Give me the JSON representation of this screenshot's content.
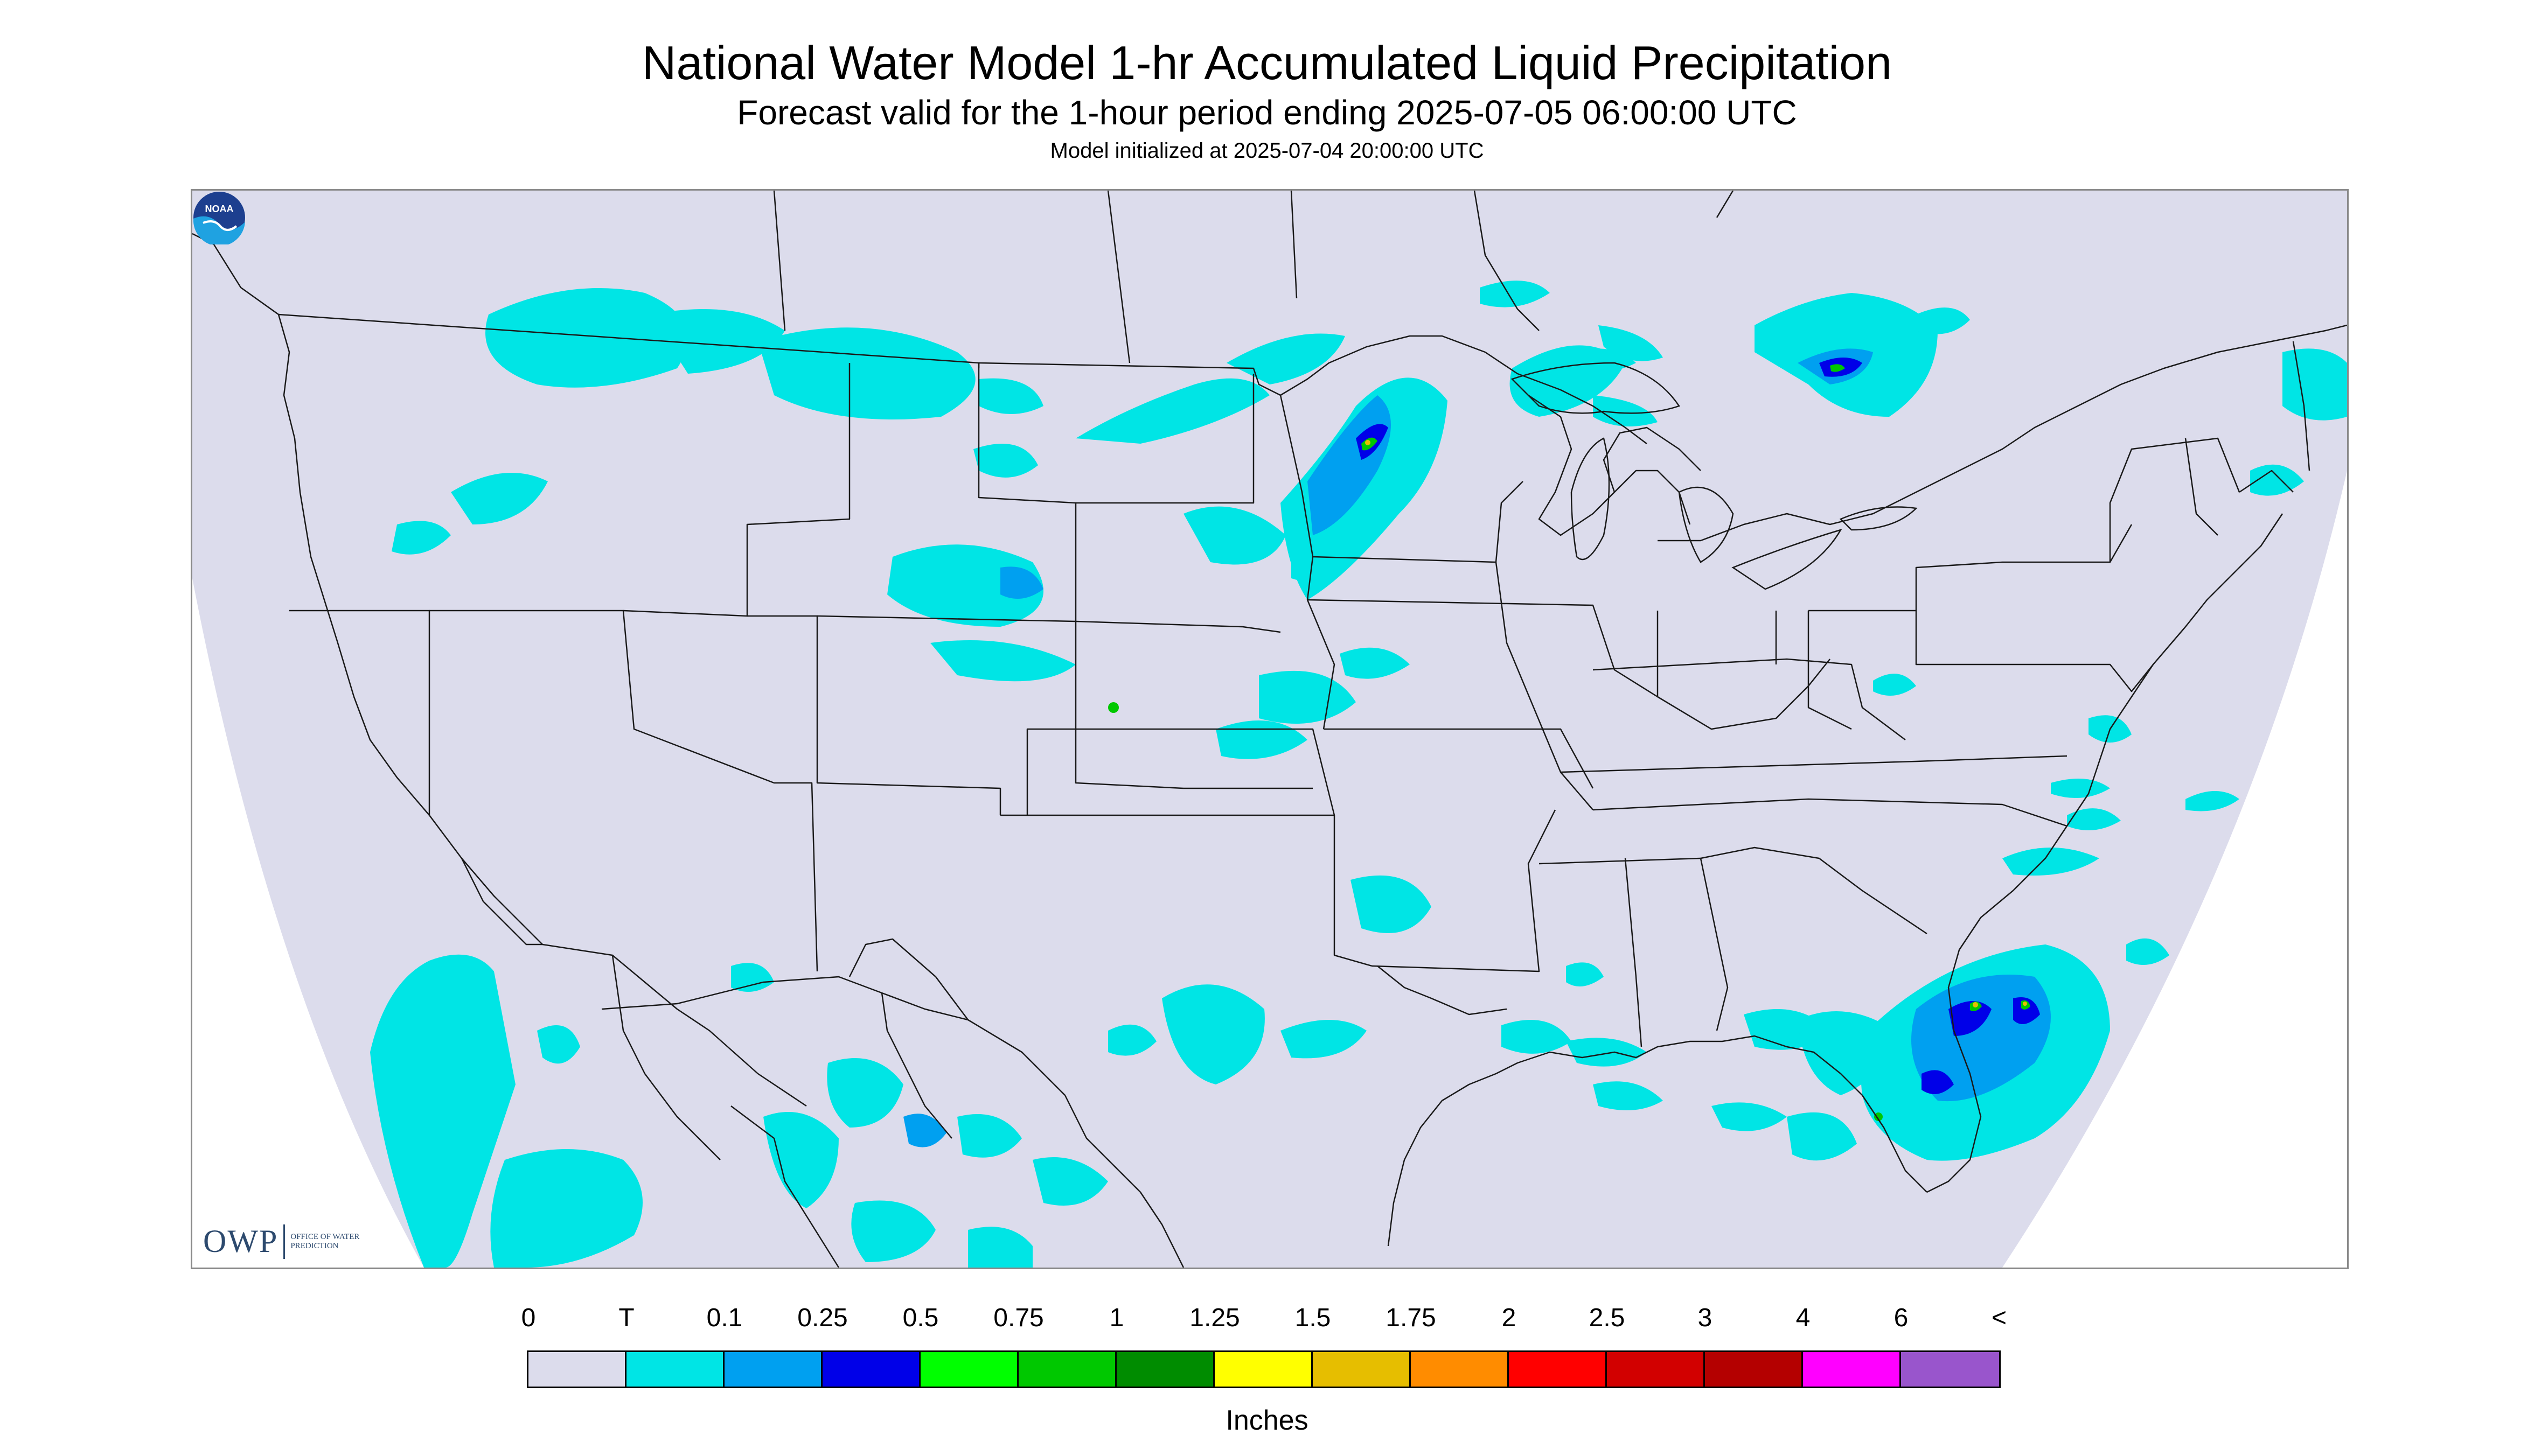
{
  "header": {
    "title": "National Water Model 1-hr Accumulated Liquid Precipitation",
    "subtitle": "Forecast valid for the 1-hour period ending 2025-07-05 06:00:00 UTC",
    "init_line": "Model initialized at 2025-07-04 20:00:00 UTC"
  },
  "map": {
    "background_color": "#dcdcec",
    "boundary_color": "#1a1a1a",
    "logos": {
      "owp": {
        "mark": "OWP",
        "words": "Office of Water Prediction"
      },
      "noaa": {
        "mark": "NOAA",
        "icon": "noaa-logo-icon"
      }
    }
  },
  "legend": {
    "tick_labels": [
      "0",
      "T",
      "0.1",
      "0.25",
      "0.5",
      "0.75",
      "1",
      "1.25",
      "1.5",
      "1.75",
      "2",
      "2.5",
      "3",
      "4",
      "6",
      "<"
    ],
    "colors": [
      "#dcdcec",
      "#00e5e5",
      "#00a0f0",
      "#0000e8",
      "#00ff00",
      "#00c800",
      "#008c00",
      "#ffff00",
      "#e6be00",
      "#ff8c00",
      "#ff0000",
      "#d20000",
      "#b40000",
      "#ff00ff",
      "#9955cc"
    ],
    "units": "Inches"
  }
}
